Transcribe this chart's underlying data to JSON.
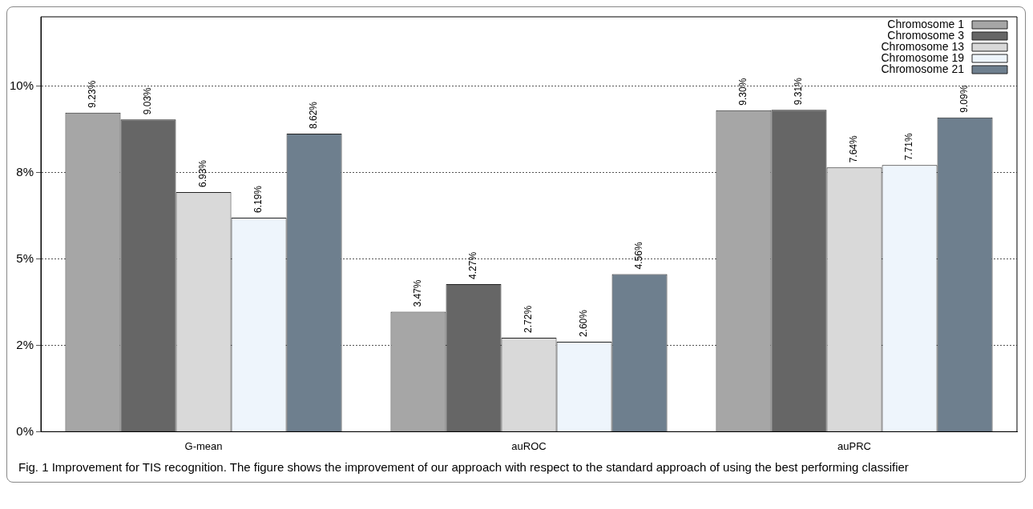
{
  "chart_data": {
    "type": "bar",
    "categories": [
      "G-mean",
      "auROC",
      "auPRC"
    ],
    "series": [
      {
        "name": "Chromosome 1",
        "color": "#a6a6a6",
        "values": [
          9.23,
          3.47,
          9.3
        ],
        "value_labels": [
          "9.23%",
          "3.47%",
          "9.30%"
        ]
      },
      {
        "name": "Chromosome 3",
        "color": "#666666",
        "values": [
          9.03,
          4.27,
          9.31
        ],
        "value_labels": [
          "9.03%",
          "4.27%",
          "9.31%"
        ]
      },
      {
        "name": "Chromosome 13",
        "color": "#d9d9d9",
        "values": [
          6.93,
          2.72,
          7.64
        ],
        "value_labels": [
          "6.93%",
          "2.72%",
          "7.64%"
        ]
      },
      {
        "name": "Chromosome 19",
        "color": "#eef5fc",
        "values": [
          6.19,
          2.6,
          7.71
        ],
        "value_labels": [
          "6.19%",
          "2.60%",
          "7.71%"
        ]
      },
      {
        "name": "Chromosome 21",
        "color": "#6e7f8e",
        "values": [
          8.62,
          4.56,
          9.09
        ],
        "value_labels": [
          "8.62%",
          "4.56%",
          "9.09%"
        ]
      }
    ],
    "ylim": [
      0,
      12
    ],
    "yticks": [
      {
        "value": 0,
        "label": "0%"
      },
      {
        "value": 2.5,
        "label": "2%"
      },
      {
        "value": 5,
        "label": "5%"
      },
      {
        "value": 7.5,
        "label": "8%"
      },
      {
        "value": 10,
        "label": "10%"
      }
    ],
    "grid": "y",
    "legend": "top right",
    "annotations": [
      "Fig. 1 Improvement for TIS recognition. The figure shows the improvement of our approach with respect to the standard approach of using the best performing classifier"
    ]
  }
}
